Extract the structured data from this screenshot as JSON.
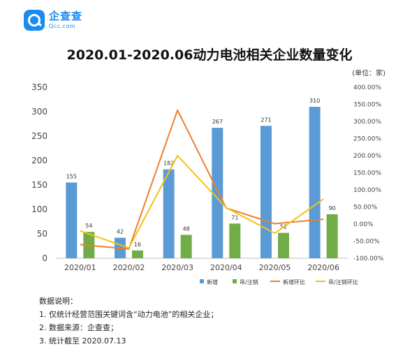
{
  "brand": {
    "name": "企查查",
    "domain": "Qcc.com"
  },
  "title": "2020.01-2020.06动力电池相关企业数量变化",
  "unit": "(单位：家)",
  "chart_data": {
    "type": "bar",
    "categories": [
      "2020/01",
      "2020/02",
      "2020/03",
      "2020/04",
      "2020/05",
      "2020/06"
    ],
    "series": [
      {
        "name": "新增",
        "kind": "bar",
        "axis": "left",
        "color": "#5b9bd5",
        "values": [
          155,
          42,
          182,
          267,
          271,
          310
        ]
      },
      {
        "name": "吊/注销",
        "kind": "bar",
        "axis": "left",
        "color": "#70ad47",
        "values": [
          54,
          16,
          48,
          71,
          52,
          90
        ]
      },
      {
        "name": "新增环比",
        "kind": "line",
        "axis": "right",
        "color": "#ed7d31",
        "values": [
          -60,
          -73,
          333,
          47,
          1,
          14
        ]
      },
      {
        "name": "吊/注销环比",
        "kind": "line",
        "axis": "right",
        "color": "#f2c30f",
        "values": [
          -20,
          -70,
          200,
          48,
          -27,
          73
        ]
      }
    ],
    "y_left": {
      "min": 0,
      "max": 350,
      "ticks": [
        "0",
        "50",
        "100",
        "150",
        "200",
        "250",
        "300",
        "350"
      ]
    },
    "y_right": {
      "min": -100,
      "max": 400,
      "ticks": [
        "-100.00%",
        "-50.00%",
        "0.00%",
        "50.00%",
        "100.00%",
        "150.00%",
        "200.00%",
        "250.00%",
        "300.00%",
        "350.00%",
        "400.00%"
      ]
    },
    "legend_position": "bottom",
    "data_labels": true,
    "grid": false
  },
  "notes": {
    "heading": "数据说明：",
    "lines": [
      "1. 仅统计经营范围关键词含“动力电池”的相关企业；",
      "2. 数据来源：企查查；",
      "3. 统计截至 2020.07.13"
    ]
  }
}
